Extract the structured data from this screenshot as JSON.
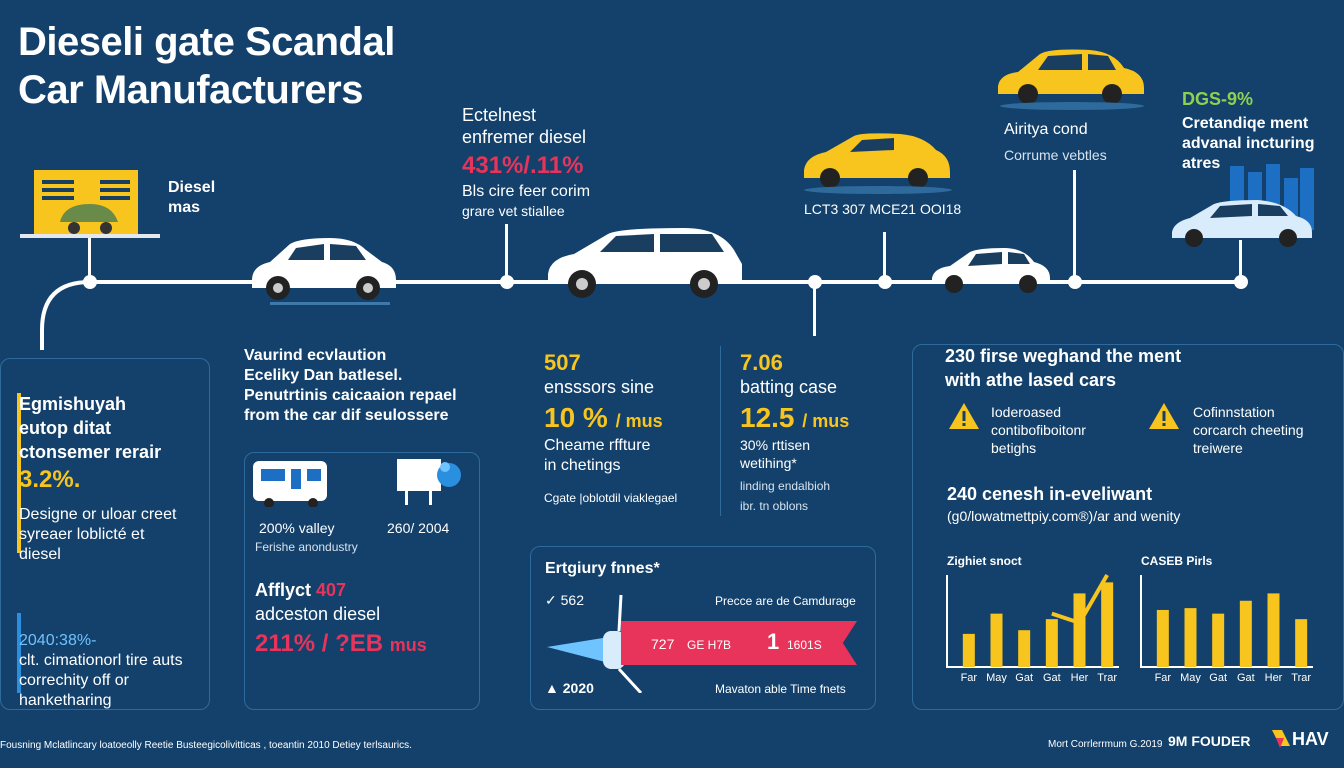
{
  "title": {
    "line1": "Dieseli gate Scandal",
    "line2": "Car Manufacturers"
  },
  "timeline": {
    "diesel": {
      "line1": "Diesel",
      "line2": "mas"
    },
    "ecten": {
      "line1": "Ectelnest",
      "line2": "enfremer diesel",
      "stat": "431%/.11%",
      "sub1": "Bls cire feer corim",
      "sub2": "grare vet stiallee"
    },
    "lct": {
      "label": "LCT3 307 MCE21 OOI18"
    },
    "airity": {
      "line1": "Airitya cond",
      "line2": "Corrume vebtles"
    },
    "dgs": {
      "stat": "DGS-9%",
      "line1": "Cretandiqe ment",
      "line2": "advanal incturing",
      "line3": "atres"
    }
  },
  "left_panel": {
    "heading1": "Egmishuyah",
    "heading2": "eutop ditat",
    "heading3": "ctonsemer rerair",
    "stat": "3.2%.",
    "sub1": "Designe or uloar creet",
    "sub2": "syreaer loblicté et",
    "sub3": "diesel",
    "stat2": "2040:38%-",
    "sub4": "clt. cimationorl tire auts",
    "sub5": "correchity off or",
    "sub6": "hanketharing"
  },
  "evaluation": {
    "line1": "Vaurind ecvlaution",
    "line2": "Eceliky Dan batlesel.",
    "line3": "Penutrtinis caicaaion repael",
    "line4": "from the car dif seulossere",
    "item1_val": "200% valley",
    "item1_sub": "Ferishe anondustry",
    "item2_val": "260/ 2004",
    "aff_label": "Afflyct",
    "aff_num": "407",
    "aff_sub": "adceston diesel",
    "big": "211% / ?EB",
    "big_unit": "mus"
  },
  "col507": {
    "num": "507",
    "line1": "ensssors sine",
    "big": "10 %",
    "unit": "/ mus",
    "sub1": "Cheame rffture",
    "sub2": "in chetings",
    "foot": "Cgate |oblotdil viaklegael"
  },
  "col706": {
    "num": "7.06",
    "line1": "batting case",
    "big": "12.5",
    "unit": "/ mus",
    "sub1": "30% rttisen",
    "sub2": "wetihing*",
    "foot1": "linding endalbioh",
    "foot2": "ibr. tn oblons"
  },
  "fines": {
    "title": "Ertgiury fnnes*",
    "row1": "562",
    "right1": "Precce are de Camdurage",
    "bar_left": "727",
    "bar_mid": "GE H7B",
    "bar_big": "1",
    "bar_right": "1601S",
    "year": "2020",
    "right2": "Mavaton able Time fnets"
  },
  "right_panel": {
    "heading1": "230 firse weghand the ment",
    "heading2": "with athe lased cars",
    "warn1": [
      "Ioderoased",
      "contibofiboitonr",
      "betighs"
    ],
    "warn2": [
      "Cofinnstation",
      "corcarch cheeting",
      "treiwere"
    ],
    "heading3": "240 cenesh in-eveliwant",
    "sub3": "(g0/lowatmettpiy.com®)/ar and wenity",
    "chart1_title": "Zighiet snoct",
    "chart2_title": "CASEB Pirls",
    "months": [
      "Far",
      "May",
      "Gat",
      "Gat",
      "Her",
      "Trar"
    ]
  },
  "chart_data": [
    {
      "type": "bar",
      "title": "Zighiet snoct",
      "categories": [
        "Far",
        "May",
        "Gat",
        "Gat",
        "Her",
        "Trar"
      ],
      "values": [
        36,
        58,
        40,
        52,
        80,
        92
      ],
      "line": [
        null,
        null,
        null,
        58,
        48,
        100
      ],
      "ylim": [
        0,
        100
      ]
    },
    {
      "type": "bar",
      "title": "CASEB Pirls",
      "categories": [
        "Far",
        "May",
        "Gat",
        "Gat",
        "Her",
        "Trar"
      ],
      "values": [
        62,
        64,
        58,
        72,
        80,
        52
      ],
      "ylim": [
        0,
        100
      ]
    }
  ],
  "footer": {
    "left": "Fousning Mclatlincary loatoeolly Reetie Busteegicolivitticas , toeantin 2010 Detiey terlsaurics.",
    "credit": "Mort Corrlerrmum G.2019",
    "brand1": "9M FOUDER",
    "brand2": "HAV"
  },
  "colors": {
    "bg": "#13416b",
    "accent_yellow": "#f7c51e",
    "accent_red": "#e8335a",
    "accent_green": "#8fd14f",
    "bars_blue": "#1d6fc4"
  }
}
